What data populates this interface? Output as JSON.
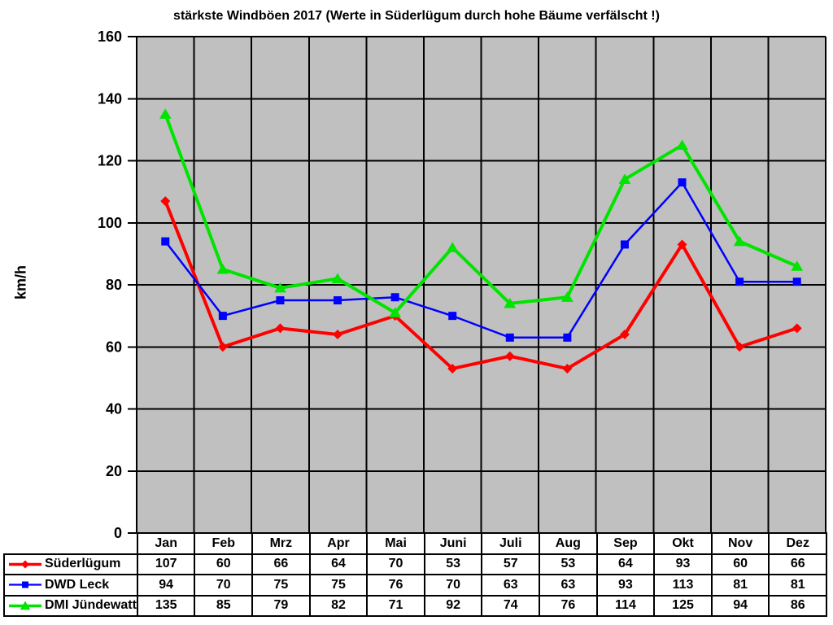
{
  "page": {
    "title": "stärkste Windböen 2017 (Werte in Süderlügum durch hohe Bäume verfälscht !)"
  },
  "chart_data": {
    "type": "line",
    "title": "stärkste Windböen 2017 (Werte in Süderlügum durch hohe Bäume verfälscht !)",
    "xlabel": "",
    "ylabel": "km/h",
    "ylim": [
      0,
      160
    ],
    "ytick_step": 20,
    "grid": true,
    "plot_background_color": "#c0c0c0",
    "grid_color": "#000000",
    "legend_position": "table-left-column",
    "categories": [
      "Jan",
      "Feb",
      "Mrz",
      "Apr",
      "Mai",
      "Juni",
      "Juli",
      "Aug",
      "Sep",
      "Okt",
      "Nov",
      "Dez"
    ],
    "series": [
      {
        "name": "Süderlügum",
        "color": "#ff0000",
        "marker": "diamond",
        "values": [
          107,
          60,
          66,
          64,
          70,
          53,
          57,
          53,
          64,
          93,
          60,
          66
        ]
      },
      {
        "name": "DWD Leck",
        "color": "#0000ff",
        "marker": "square",
        "values": [
          94,
          70,
          75,
          75,
          76,
          70,
          63,
          63,
          93,
          113,
          81,
          81
        ]
      },
      {
        "name": "DMI Jündewatt",
        "color": "#00e400",
        "marker": "triangle",
        "values": [
          135,
          85,
          79,
          82,
          71,
          92,
          74,
          76,
          114,
          125,
          94,
          86
        ]
      }
    ]
  }
}
